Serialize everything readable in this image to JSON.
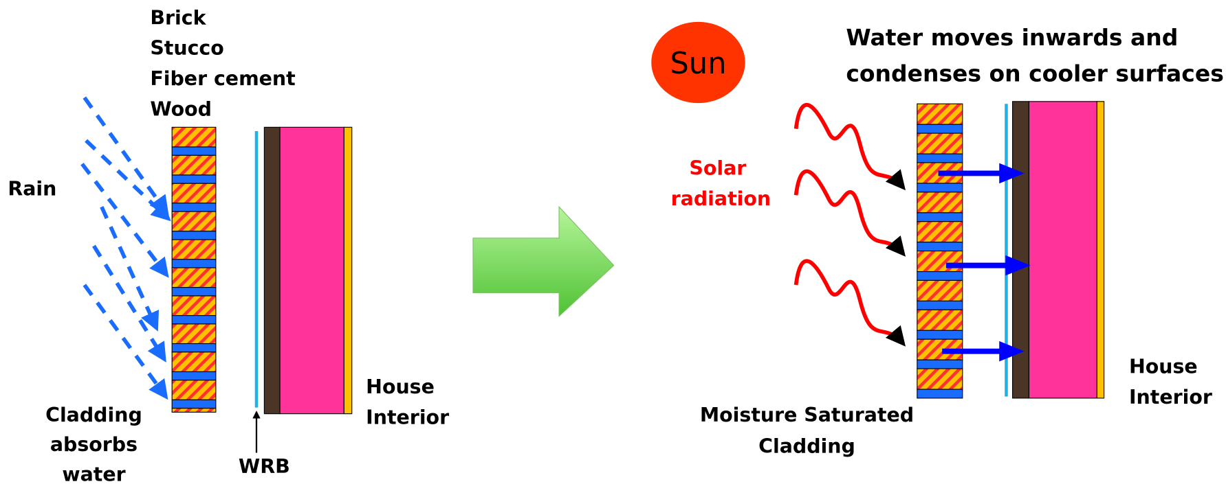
{
  "left": {
    "cladding_types": [
      "Brick",
      "Stucco",
      "Fiber cement",
      "Wood"
    ],
    "rain": "Rain",
    "cladding_note": [
      "Cladding",
      "absorbs",
      "water"
    ],
    "wrb": "WRB",
    "interior": [
      "House",
      "Interior"
    ]
  },
  "right": {
    "sun": "Sun",
    "title": [
      "Water moves inwards and",
      "condenses on cooler surfaces"
    ],
    "solar": [
      "Solar",
      "radiation"
    ],
    "cladding_note": [
      "Moisture Saturated",
      "Cladding"
    ],
    "interior": [
      "House",
      "Interior"
    ]
  }
}
